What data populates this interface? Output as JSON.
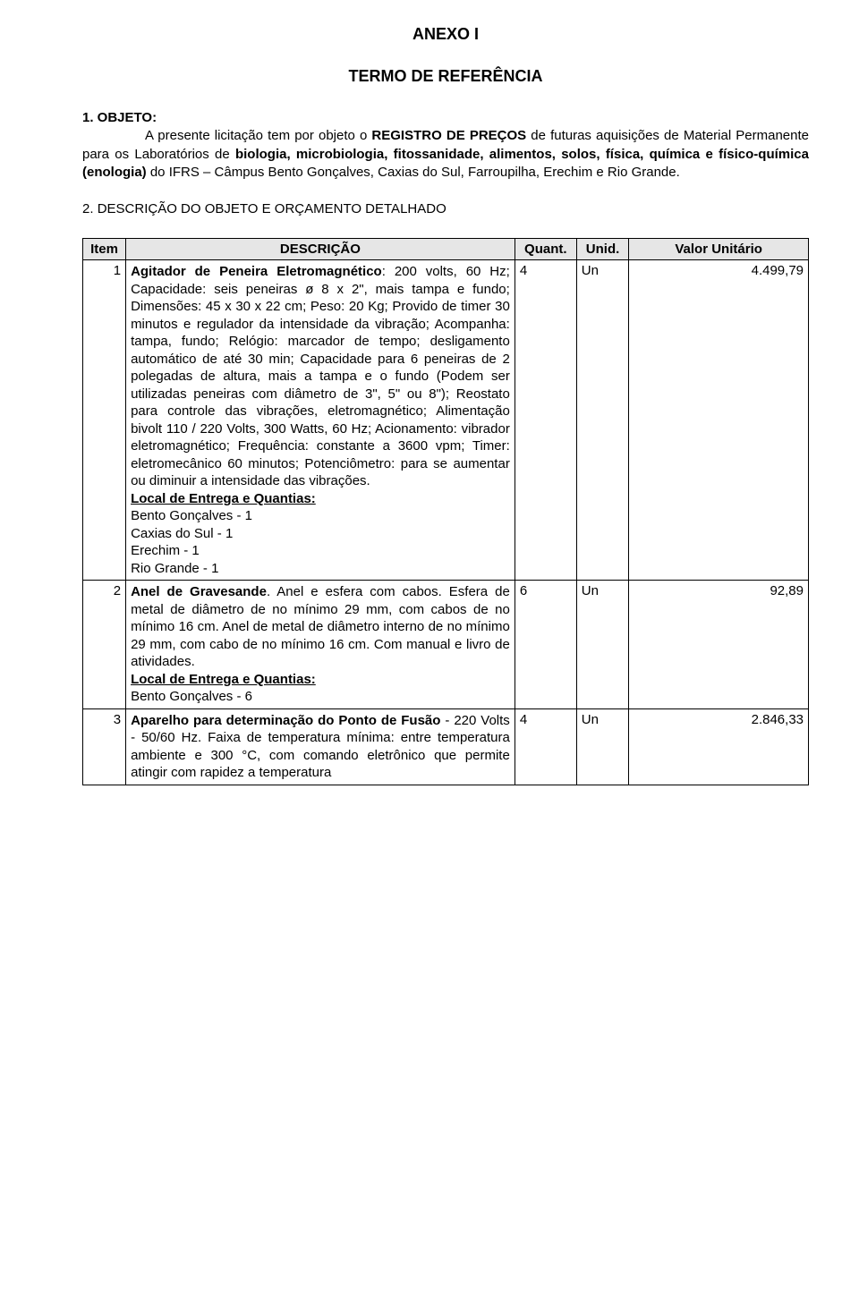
{
  "header": {
    "anexo": "ANEXO I",
    "title": "TERMO DE REFERÊNCIA"
  },
  "section1": {
    "lead": "1. OBJETO:",
    "body_before_bold": "A presente licitação tem por objeto o ",
    "bold1": "REGISTRO DE PREÇOS",
    "mid1": " de futuras aquisições de Material Permanente para os Laboratórios de ",
    "bold2": "biologia, microbiologia, fitossanidade, alimentos, solos, física, química e físico-química (enologia)",
    "tail": " do IFRS – Câmpus Bento Gonçalves, Caxias do Sul, Farroupilha, Erechim e Rio Grande."
  },
  "section2": {
    "text_before": "2. ",
    "bold": "DESCRIÇÃO DO OBJETO E ORÇAMENTO DETALHADO"
  },
  "table": {
    "headers": {
      "item": "Item",
      "desc": "DESCRIÇÃO",
      "qty": "Quant.",
      "unit": "Unid.",
      "value": "Valor Unitário"
    },
    "rows": [
      {
        "num": "1",
        "title": "Agitador de Peneira Eletromagnético",
        "colon": ":",
        "body": "200 volts, 60 Hz; Capacidade: seis peneiras ø 8 x 2\", mais tampa e fundo; Dimensões: 45 x 30 x 22 cm; Peso: 20 Kg; Provido de timer 30 minutos e regulador da intensidade da vibração; Acompanha: tampa, fundo; Relógio: marcador de tempo; desligamento automático de até 30 min; Capacidade para 6 peneiras de 2 polegadas de altura, mais a tampa e o fundo (Podem ser utilizadas peneiras com diâmetro de 3\", 5\" ou 8\"); Reostato para controle das vibrações, eletromagnético; Alimentação bivolt 110 / 220 Volts, 300 Watts, 60 Hz; Acionamento: vibrador eletromagnético; Frequência: constante a 3600 vpm; Timer: eletromecânico 60 minutos; Potenciômetro: para se aumentar ou diminuir a intensidade das vibrações.",
        "loc_label": "Local de Entrega e Quantias:",
        "loc_items": [
          "Bento Gonçalves - 1",
          "Caxias do Sul - 1",
          "Erechim - 1",
          "Rio Grande - 1"
        ],
        "qty": "4",
        "unit": "Un",
        "value": "4.499,79"
      },
      {
        "num": "2",
        "title": "Anel de Gravesande",
        "post_title": ". Anel e esfera com cabos. Esfera de metal de diâmetro de no mínimo 29 mm, com cabos de no mínimo 16 cm.  Anel de metal de diâmetro interno de no mínimo 29 mm, com cabo de no mínimo 16 cm. Com manual e livro de atividades.",
        "loc_label": "Local de Entrega e Quantias:",
        "loc_items": [
          "Bento Gonçalves - 6"
        ],
        "qty": "6",
        "unit": "Un",
        "value": "92,89"
      },
      {
        "num": "3",
        "title": "Aparelho para determinação do Ponto de Fusão",
        "post_title": " - 220 Volts - 50/60 Hz. Faixa de temperatura mínima: entre temperatura ambiente e 300 °C, com comando eletrônico que permite atingir com rapidez a temperatura",
        "qty": "4",
        "unit": "Un",
        "value": "2.846,33"
      }
    ]
  }
}
